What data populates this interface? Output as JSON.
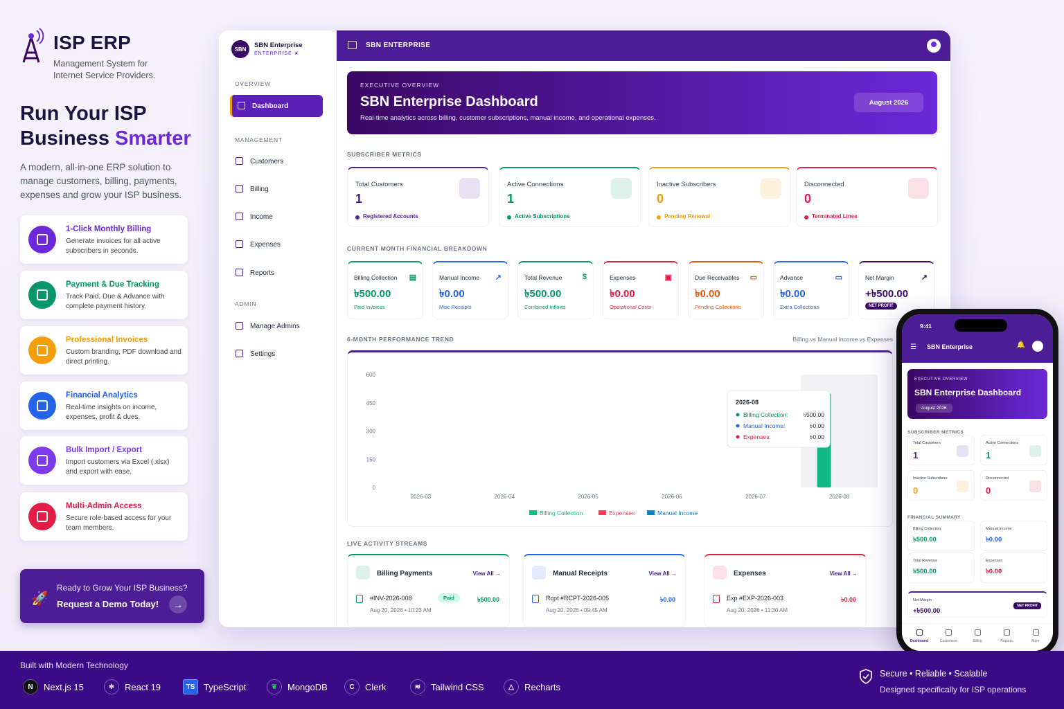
{
  "brand": {
    "title": "ISP ERP",
    "subtitle": "Management System for Internet Service Providers."
  },
  "hero": {
    "line1": "Run Your ISP",
    "line2a": "Business ",
    "line2b": "Smarter",
    "desc": "A modern, all-in-one ERP solution to manage customers, billing, payments, expenses and grow your ISP business."
  },
  "features": [
    {
      "title": "1-Click Monthly Billing",
      "desc": "Generate invoices for all active subscribers in seconds.",
      "color": "#6d28d9",
      "icon": "invoice-icon"
    },
    {
      "title": "Payment & Due Tracking",
      "desc": "Track Paid, Due & Advance with complete payment history.",
      "color": "#059669",
      "icon": "payment-icon"
    },
    {
      "title": "Professional Invoices",
      "desc": "Custom branding, PDF download and direct printing.",
      "color": "#f59e0b",
      "icon": "document-icon"
    },
    {
      "title": "Financial Analytics",
      "desc": "Real-time insights on income, expenses, profit & dues.",
      "color": "#2563eb",
      "icon": "analytics-icon"
    },
    {
      "title": "Bulk Import / Export",
      "desc": "Import customers via Excel (.xlsx) and export with ease.",
      "color": "#7c3aed",
      "icon": "file-import-icon"
    },
    {
      "title": "Multi-Admin Access",
      "desc": "Secure role-based access for your team members.",
      "color": "#e11d48",
      "icon": "users-icon"
    }
  ],
  "cta": {
    "line1": "Ready to Grow Your ISP Business?",
    "line2": "Request a Demo Today!",
    "arrow": "→"
  },
  "dash": {
    "org": "SBN Enterprise",
    "logo": "SBN",
    "tier": "ENTERPRISE ★",
    "sections": {
      "overview": "OVERVIEW",
      "management": "MANAGEMENT",
      "admin": "ADMIN"
    },
    "nav": [
      "Dashboard",
      "Customers",
      "Billing",
      "Income",
      "Expenses",
      "Reports",
      "Manage Admins",
      "Settings"
    ],
    "topbar": "SBN ENTERPRISE",
    "banner": {
      "eyebrow": "EXECUTIVE OVERVIEW",
      "title": "SBN Enterprise Dashboard",
      "desc": "Real-time analytics across billing, customer subscriptions, manual income, and operational expenses.",
      "date": "August 2026"
    },
    "labels": {
      "subscriber": "SUBSCRIBER METRICS",
      "finance": "CURRENT MONTH FINANCIAL BREAKDOWN",
      "trend": "6-MONTH PERFORMANCE TREND",
      "trend_right": "Billing vs Manual Income vs Expenses",
      "live": "LIVE ACTIVITY STREAMS"
    },
    "metrics": [
      {
        "title": "Total Customers",
        "value": "1",
        "sub": "Registered Accounts",
        "color": "#4c1d95"
      },
      {
        "title": "Active Connections",
        "value": "1",
        "sub": "Active Subscriptions",
        "color": "#059669"
      },
      {
        "title": "Inactive Subscribers",
        "value": "0",
        "sub": "Pending Renewal",
        "color": "#f59e0b"
      },
      {
        "title": "Disconnected",
        "value": "0",
        "sub": "Terminated Lines",
        "color": "#e11d48"
      }
    ],
    "finance": [
      {
        "title": "Billing Collection",
        "value": "৳500.00",
        "sub": "Paid Invoices",
        "color": "#059669",
        "icon": "▤"
      },
      {
        "title": "Manual Income",
        "value": "৳0.00",
        "sub": "Misc Receipts",
        "color": "#2563eb",
        "icon": "↗"
      },
      {
        "title": "Total Revenue",
        "value": "৳500.00",
        "sub": "Combined Inflows",
        "color": "#059669",
        "icon": "$"
      },
      {
        "title": "Expenses",
        "value": "৳0.00",
        "sub": "Operational Costs",
        "color": "#e11d48",
        "icon": "▣"
      },
      {
        "title": "Due Receivables",
        "value": "৳0.00",
        "sub": "Pending Collections",
        "color": "#ea580c",
        "icon": "▭"
      },
      {
        "title": "Advance",
        "value": "৳0.00",
        "sub": "Extra Collections",
        "color": "#2563eb",
        "icon": "▭"
      },
      {
        "title": "Net Margin",
        "value": "+৳500.00",
        "sub": "NET PROFIT",
        "color": "#3b0764",
        "icon": "↗"
      }
    ],
    "activity": [
      {
        "title": "Billing Payments",
        "va": "View All →",
        "ref": "#INV-2026-008",
        "badge": "Paid",
        "amount": "৳500.00",
        "time": "Aug 20, 2026 • 10:23 AM",
        "color": "#059669"
      },
      {
        "title": "Manual Receipts",
        "va": "View All →",
        "ref": "Rcpt #RCPT-2026-005",
        "amount": "৳0.00",
        "time": "Aug 20, 2026 • 09:45 AM",
        "color": "#2563eb"
      },
      {
        "title": "Expenses",
        "va": "View All →",
        "ref": "Exp #EXP-2026-003",
        "amount": "৳0.00",
        "time": "Aug 20, 2026 • 11:30 AM",
        "color": "#e11d48"
      }
    ]
  },
  "chart_data": {
    "type": "bar",
    "categories": [
      "2026-03",
      "2026-04",
      "2026-05",
      "2026-06",
      "2026-07",
      "2026-08"
    ],
    "series": [
      {
        "name": "Billing Collection",
        "values": [
          0,
          0,
          0,
          0,
          0,
          500
        ],
        "color": "#10b981"
      },
      {
        "name": "Expenses",
        "values": [
          0,
          0,
          0,
          0,
          0,
          0
        ],
        "color": "#f43f5e"
      },
      {
        "name": "Manual Income",
        "values": [
          0,
          0,
          0,
          0,
          0,
          0
        ],
        "color": "#0284c7"
      }
    ],
    "yticks": [
      600,
      450,
      300,
      150,
      0
    ],
    "ylim": [
      0,
      600
    ],
    "tooltip": {
      "title": "2026-08",
      "rows": [
        {
          "label": "Billing Collection:",
          "value": "৳500.00",
          "color": "#059669"
        },
        {
          "label": "Manual Income:",
          "value": "৳0.00",
          "color": "#2563eb"
        },
        {
          "label": "Expenses:",
          "value": "৳0.00",
          "color": "#e11d48"
        }
      ]
    }
  },
  "phone": {
    "time": "9:41",
    "org": "SBN Enterprise",
    "eyebrow": "EXECUTIVE OVERVIEW",
    "title": "SBN Enterprise Dashboard",
    "date": "August 2026",
    "sub_label": "SUBSCRIBER METRICS",
    "fin_label": "FINANCIAL SUMMARY",
    "cards": [
      {
        "t": "Total Customers",
        "v": "1",
        "c": "#4c1d95"
      },
      {
        "t": "Active Connections",
        "v": "1",
        "c": "#059669"
      },
      {
        "t": "Inactive Subscribers",
        "v": "0",
        "c": "#f59e0b"
      },
      {
        "t": "Disconnected",
        "v": "0",
        "c": "#e11d48"
      }
    ],
    "fin": [
      {
        "t": "Billing Collection",
        "v": "৳500.00",
        "c": "#059669"
      },
      {
        "t": "Manual Income",
        "v": "৳0.00",
        "c": "#2563eb"
      },
      {
        "t": "Total Revenue",
        "v": "৳500.00",
        "c": "#059669"
      },
      {
        "t": "Expenses",
        "v": "৳0.00",
        "c": "#e11d48"
      }
    ],
    "net": {
      "t": "Net Margin",
      "v": "+৳500.00",
      "badge": "NET PROFIT"
    },
    "nav": [
      "Dashboard",
      "Customers",
      "Billing",
      "Reports",
      "More"
    ]
  },
  "footer": {
    "built": "Built with Modern Technology",
    "tech": [
      "Next.js 15",
      "React 19",
      "TypeScript",
      "MongoDB",
      "Clerk",
      "Tailwind CSS",
      "Recharts"
    ],
    "secure": "Secure • Reliable • Scalable",
    "designed": "Designed specifically for ISP operations"
  }
}
